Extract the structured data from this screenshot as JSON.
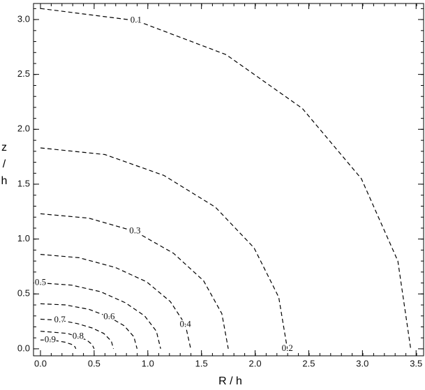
{
  "chart_data": {
    "type": "contour",
    "xlabel": "R / h",
    "ylabel": "z / h",
    "xlim": [
      -0.065,
      3.57
    ],
    "ylim": [
      -0.064,
      3.146
    ],
    "xticks": [
      {
        "value": 0,
        "label": "0.0"
      },
      0.5,
      {
        "value": 1,
        "label": "1.0"
      },
      1.5,
      {
        "value": 2,
        "label": "2.0"
      },
      2.5,
      {
        "value": 3,
        "label": "3.0"
      },
      3.5
    ],
    "yticks": [
      {
        "value": 0,
        "label": "0.0"
      },
      0.5,
      {
        "value": 1,
        "label": "1.0"
      },
      1.5,
      {
        "value": 2,
        "label": "2.0"
      },
      2.5,
      {
        "value": 3,
        "label": "3.0"
      }
    ],
    "series": [
      {
        "name": "0.1",
        "color": "#000000",
        "x": [
          0,
          0.89,
          1.73,
          2.44,
          2.99,
          3.33,
          3.45
        ],
        "y": [
          3.1,
          2.99,
          2.68,
          2.19,
          1.55,
          0.8,
          0
        ]
      },
      {
        "name": "0.2",
        "color": "#000000",
        "x": [
          0,
          0.6,
          1.15,
          1.63,
          1.99,
          2.22,
          2.3
        ],
        "y": [
          1.83,
          1.77,
          1.58,
          1.29,
          0.92,
          0.47,
          0
        ]
      },
      {
        "name": "0.3",
        "color": "#000000",
        "x": [
          0,
          0.45,
          0.88,
          1.24,
          1.52,
          1.69,
          1.75
        ],
        "y": [
          1.23,
          1.19,
          1.07,
          0.87,
          0.62,
          0.32,
          0
        ]
      },
      {
        "name": "0.4",
        "color": "#000000",
        "x": [
          0,
          0.36,
          0.7,
          0.99,
          1.21,
          1.35,
          1.4
        ],
        "y": [
          0.86,
          0.83,
          0.74,
          0.61,
          0.43,
          0.22,
          0
        ]
      },
      {
        "name": "0.5",
        "color": "#000000",
        "x": [
          0,
          0.29,
          0.56,
          0.79,
          0.97,
          1.08,
          1.12
        ],
        "y": [
          0.6,
          0.58,
          0.52,
          0.42,
          0.3,
          0.16,
          0
        ]
      },
      {
        "name": "0.6",
        "color": "#000000",
        "x": [
          0,
          0.23,
          0.45,
          0.64,
          0.78,
          0.87,
          0.9
        ],
        "y": [
          0.41,
          0.4,
          0.36,
          0.29,
          0.21,
          0.11,
          0
        ]
      },
      {
        "name": "0.7",
        "color": "#000000",
        "x": [
          0,
          0.18,
          0.34,
          0.48,
          0.59,
          0.66,
          0.68
        ],
        "y": [
          0.27,
          0.26,
          0.23,
          0.19,
          0.14,
          0.07,
          0
        ]
      },
      {
        "name": "0.8",
        "color": "#000000",
        "x": [
          0,
          0.13,
          0.25,
          0.35,
          0.43,
          0.48,
          0.5
        ],
        "y": [
          0.16,
          0.15,
          0.14,
          0.11,
          0.08,
          0.04,
          0
        ]
      },
      {
        "name": "0.9",
        "color": "#000000",
        "x": [
          0,
          0.09,
          0.17,
          0.23,
          0.29,
          0.32,
          0.33
        ],
        "y": [
          0.08,
          0.08,
          0.07,
          0.06,
          0.04,
          0.02,
          0
        ]
      }
    ]
  }
}
